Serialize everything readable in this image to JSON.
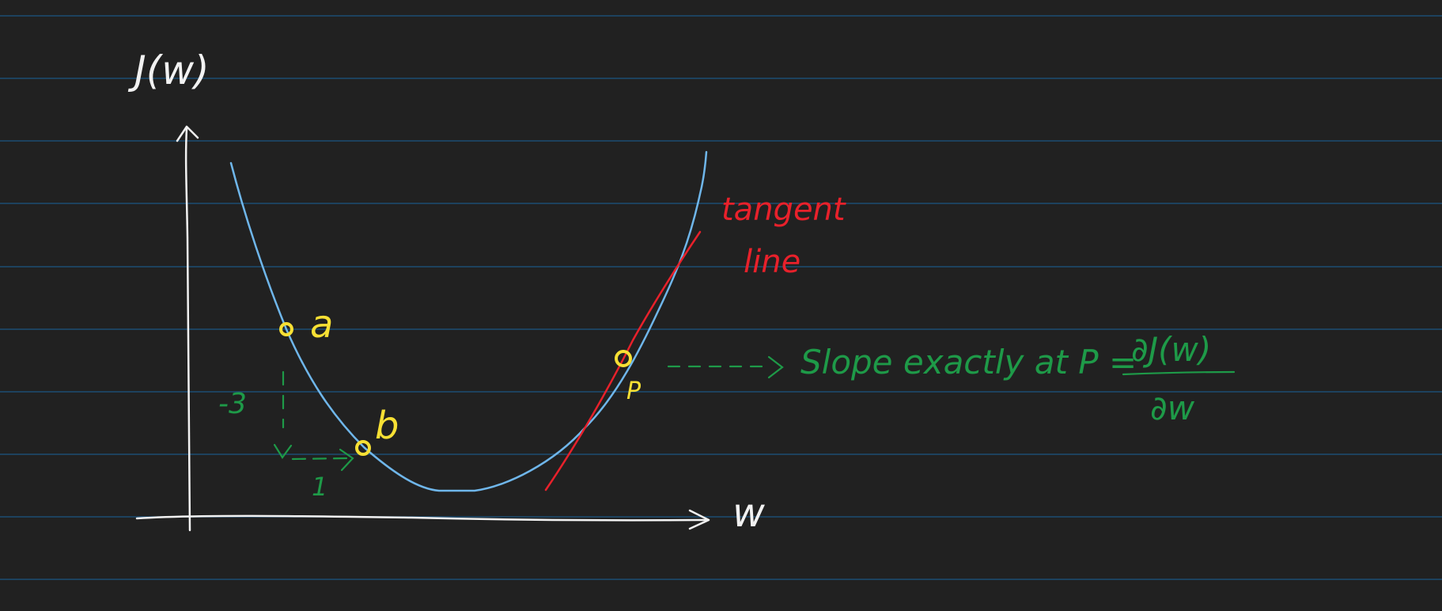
{
  "colors": {
    "background": "#212121",
    "ruled_line": "#1c4d73",
    "axes": "#f2f2f2",
    "curve": "#6fb6ea",
    "tangent": "#e8212b",
    "points": "#f7e034",
    "annotation": "#1e9a48"
  },
  "axes": {
    "y_label": "J(w)",
    "x_label": "w"
  },
  "points": {
    "a": "a",
    "b": "b",
    "p": "P"
  },
  "tangent": {
    "label_line1": "tangent",
    "label_line2": "line"
  },
  "step": {
    "rise": "-3",
    "run": "1"
  },
  "annotation": {
    "text": "Slope exactly at P =",
    "numerator": "∂J(w)",
    "denominator": "∂w"
  }
}
